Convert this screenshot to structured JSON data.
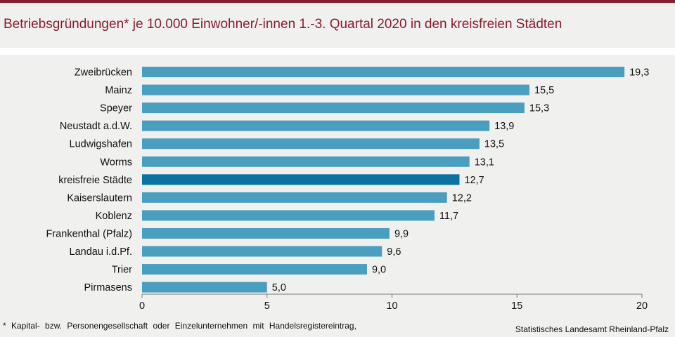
{
  "title": "Betriebsgründungen* je 10.000 Einwohner/-innen 1.-3. Quartal 2020  in den kreisfreien Städten",
  "footnote": "* Kapital- bzw. Personengesellschaft  oder Einzelunternehmen  mit  Handelsregistereintrag,",
  "source": "Statistisches Landesamt Rheinland-Pfalz",
  "colors": {
    "bar": "#4a9ec0",
    "highlight": "#0c72a0",
    "title": "#8a1c2b"
  },
  "chart_data": {
    "type": "bar",
    "orientation": "horizontal",
    "categories": [
      "Zweibrücken",
      "Mainz",
      "Speyer",
      "Neustadt a.d.W.",
      "Ludwigshafen",
      "Worms",
      "kreisfreie Städte",
      "Kaiserslautern",
      "Koblenz",
      "Frankenthal (Pfalz)",
      "Landau i.d.Pf.",
      "Trier",
      "Pirmasens"
    ],
    "values": [
      19.3,
      15.5,
      15.3,
      13.9,
      13.5,
      13.1,
      12.7,
      12.2,
      11.7,
      9.9,
      9.6,
      9.0,
      5.0
    ],
    "value_labels": [
      "19,3",
      "15,5",
      "15,3",
      "13,9",
      "13,5",
      "13,1",
      "12,7",
      "12,2",
      "11,7",
      "9,9",
      "9,6",
      "9,0",
      "5,0"
    ],
    "highlight": "kreisfreie Städte",
    "xlim": [
      0,
      20
    ],
    "xticks": [
      0,
      5,
      10,
      15,
      20
    ],
    "xtick_labels": [
      "0",
      "5",
      "10",
      "15",
      "20"
    ],
    "grid": false
  }
}
